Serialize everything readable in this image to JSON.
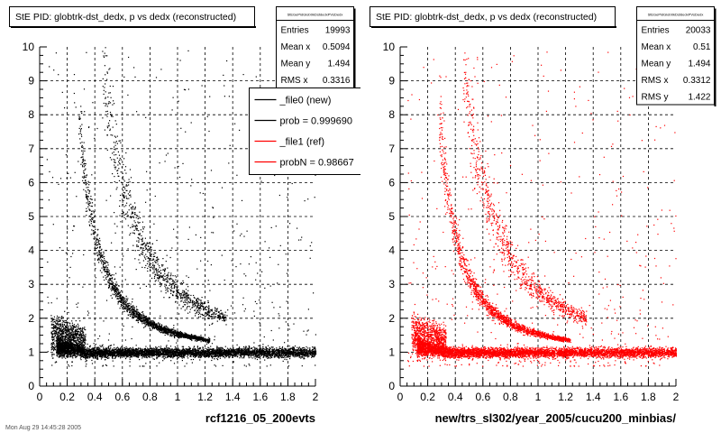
{
  "chart_data": [
    {
      "type": "scatter",
      "title": "StE PID: globtrk-dst_dedx,  p vs dedx (reconstructed)",
      "xlabel": "rcf1216_05_200evts",
      "ylabel": "",
      "xlim": [
        0,
        2
      ],
      "ylim": [
        0,
        10
      ],
      "x_ticks": [
        "0",
        "0.2",
        "0.4",
        "0.6",
        "0.8",
        "1",
        "1.2",
        "1.4",
        "1.6",
        "1.8",
        "2"
      ],
      "y_ticks": [
        "0",
        "1",
        "2",
        "3",
        "4",
        "5",
        "6",
        "7",
        "8",
        "9",
        "10"
      ],
      "grid": true,
      "color": "#000000",
      "stats": {
        "title": "StEGePidGlobtrkDstdedxPVsDedx",
        "rows": [
          {
            "label": "Entries",
            "value": "19993"
          },
          {
            "label": "Mean x",
            "value": "0.5094"
          },
          {
            "label": "Mean y",
            "value": "1.494"
          },
          {
            "label": "RMS x",
            "value": "0.3316"
          }
        ]
      },
      "legend": {
        "placement": "top-right",
        "entries": [
          {
            "label": "_file0 (new)",
            "color": "#000000"
          },
          {
            "label": "prob = 0.999690",
            "color": "#000000"
          },
          {
            "label": "_file1 (ref)",
            "color": "#ff0000"
          },
          {
            "label": "probN = 0.98667",
            "color": "#ff0000"
          }
        ]
      },
      "entries": 19993
    },
    {
      "type": "scatter",
      "title": "StE PID: globtrk-dst_dedx,  p vs dedx (reconstructed)",
      "xlabel": "new/trs_sl302/year_2005/cucu200_minbias/",
      "ylabel": "",
      "xlim": [
        0,
        2
      ],
      "ylim": [
        0,
        10
      ],
      "x_ticks": [
        "0",
        "0.2",
        "0.4",
        "0.6",
        "0.8",
        "1",
        "1.2",
        "1.4",
        "1.6",
        "1.8",
        "2"
      ],
      "y_ticks": [
        "0",
        "1",
        "2",
        "3",
        "4",
        "5",
        "6",
        "7",
        "8",
        "9",
        "10"
      ],
      "grid": true,
      "color": "#ff0000",
      "stats": {
        "title": "StEGePidGlobtrkDstdedxPVsDedx",
        "rows": [
          {
            "label": "Entries",
            "value": "20033"
          },
          {
            "label": "Mean x",
            "value": "0.51"
          },
          {
            "label": "Mean y",
            "value": "1.494"
          },
          {
            "label": "RMS x",
            "value": "0.3312"
          },
          {
            "label": "RMS y",
            "value": "1.422"
          }
        ]
      },
      "entries": 20033
    }
  ],
  "footer": {
    "timestamp": "Mon Aug 29 14:45:28 2005"
  }
}
